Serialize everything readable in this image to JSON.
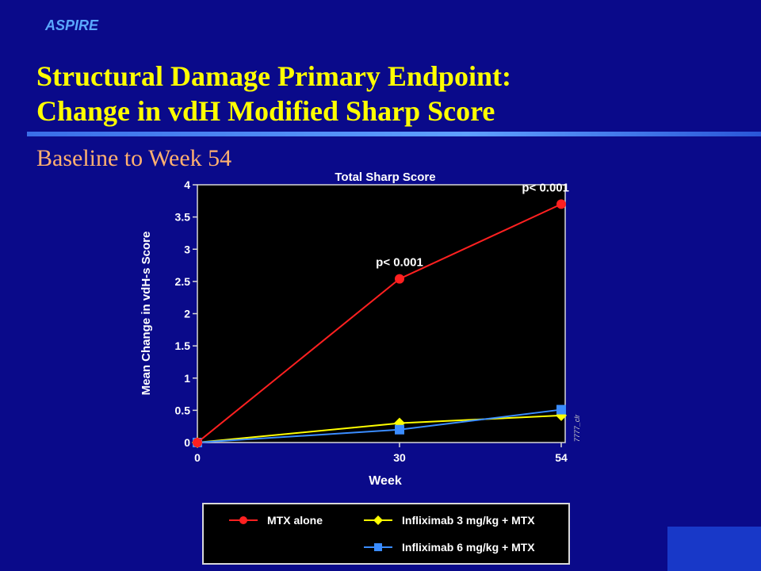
{
  "header": {
    "brand": "ASPIRE",
    "title_line1": "Structural Damage Primary Endpoint:",
    "title_line2": "Change in vdH Modified Sharp Score",
    "subtitle": "Baseline to Week 54"
  },
  "chart_data": {
    "type": "line",
    "title": "Total Sharp Score",
    "xlabel": "Week",
    "ylabel": "Mean Change in vdH-s Score",
    "x": [
      0,
      30,
      54
    ],
    "xlim": [
      0,
      54
    ],
    "ylim": [
      0,
      4
    ],
    "yticks": [
      "0",
      "0.5",
      "1",
      "1.5",
      "2",
      "2.5",
      "3",
      "3.5",
      "4"
    ],
    "xticks": [
      "0",
      "30",
      "54"
    ],
    "series": [
      {
        "name": "MTX alone",
        "values": [
          0,
          2.54,
          3.7
        ],
        "color": "#ff2020",
        "marker": "circle"
      },
      {
        "name": "Infliximab 3 mg/kg + MTX",
        "values": [
          0,
          0.3,
          0.42
        ],
        "color": "#ffff00",
        "marker": "diamond"
      },
      {
        "name": "Infliximab 6 mg/kg + MTX",
        "values": [
          0,
          0.2,
          0.51
        ],
        "color": "#3a8cff",
        "marker": "square"
      }
    ],
    "annotations": [
      {
        "text": "p< 0.001",
        "x": 30,
        "y": 2.54
      },
      {
        "text": "p< 0.001",
        "x": 54,
        "y": 3.7
      }
    ],
    "side_note": "7777_clr",
    "legend_placement": "bottom",
    "grid": false
  }
}
